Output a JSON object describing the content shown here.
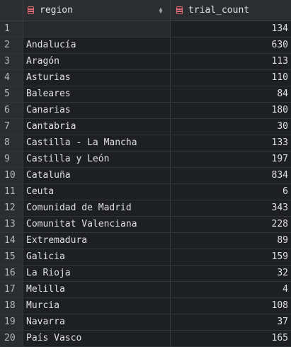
{
  "columns": {
    "region": {
      "label": "region",
      "icon": "table-column-icon"
    },
    "trial_count": {
      "label": "trial_count",
      "icon": "table-column-icon"
    }
  },
  "rows": [
    {
      "index": "1",
      "region": "",
      "trial_count": "134"
    },
    {
      "index": "2",
      "region": "Andalucía",
      "trial_count": "630"
    },
    {
      "index": "3",
      "region": "Aragón",
      "trial_count": "113"
    },
    {
      "index": "4",
      "region": "Asturias",
      "trial_count": "110"
    },
    {
      "index": "5",
      "region": "Baleares",
      "trial_count": "84"
    },
    {
      "index": "6",
      "region": "Canarias",
      "trial_count": "180"
    },
    {
      "index": "7",
      "region": "Cantabria",
      "trial_count": "30"
    },
    {
      "index": "8",
      "region": "Castilla - La Mancha",
      "trial_count": "133"
    },
    {
      "index": "9",
      "region": "Castilla y León",
      "trial_count": "197"
    },
    {
      "index": "10",
      "region": "Cataluña",
      "trial_count": "834"
    },
    {
      "index": "11",
      "region": "Ceuta",
      "trial_count": "6"
    },
    {
      "index": "12",
      "region": "Comunidad de Madrid",
      "trial_count": "343"
    },
    {
      "index": "13",
      "region": "Comunitat Valenciana",
      "trial_count": "228"
    },
    {
      "index": "14",
      "region": "Extremadura",
      "trial_count": "89"
    },
    {
      "index": "15",
      "region": "Galicia",
      "trial_count": "159"
    },
    {
      "index": "16",
      "region": "La Rioja",
      "trial_count": "32"
    },
    {
      "index": "17",
      "region": "Melilla",
      "trial_count": "4"
    },
    {
      "index": "18",
      "region": "Murcia",
      "trial_count": "108"
    },
    {
      "index": "19",
      "region": "Navarra",
      "trial_count": "37"
    },
    {
      "index": "20",
      "region": "País Vasco",
      "trial_count": "165"
    }
  ]
}
